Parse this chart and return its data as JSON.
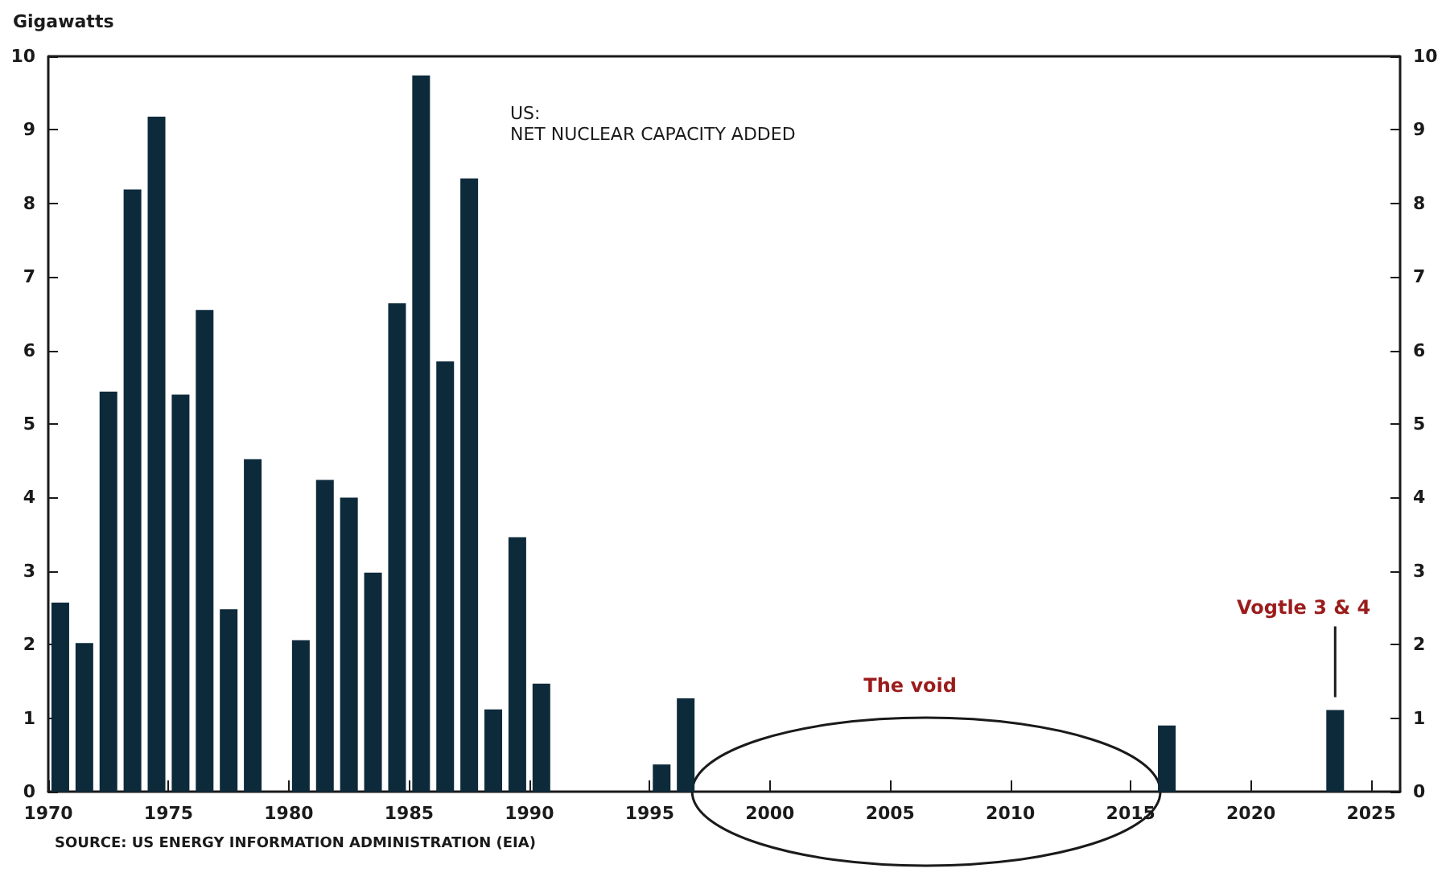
{
  "chart_data": {
    "type": "bar",
    "title": "US:",
    "subtitle": "NET NUCLEAR CAPACITY ADDED",
    "ylabel": "Gigawatts",
    "x": [
      1970.5,
      1971.5,
      1972.5,
      1973.5,
      1974.5,
      1975.5,
      1976.5,
      1977.5,
      1978.5,
      1980.5,
      1981.5,
      1982.5,
      1983.5,
      1984.5,
      1985.5,
      1986.5,
      1987.5,
      1988.5,
      1989.5,
      1990.5,
      1995.5,
      1996.5,
      2016.5,
      2023.5
    ],
    "values": [
      2.57,
      2.02,
      5.44,
      8.19,
      9.18,
      5.4,
      6.55,
      2.48,
      4.52,
      2.06,
      4.24,
      4.0,
      2.98,
      6.64,
      9.74,
      5.85,
      8.34,
      1.12,
      3.46,
      1.47,
      0.37,
      1.27,
      0.9,
      1.11
    ],
    "color": "#0d2a3a",
    "xlim": [
      1970,
      2026.2
    ],
    "xticks": [
      1970,
      1975,
      1980,
      1985,
      1990,
      1995,
      2000,
      2005,
      2010,
      2015,
      2020,
      2025
    ],
    "ylim": [
      0,
      10
    ],
    "yticks": [
      0,
      1,
      2,
      3,
      4,
      5,
      6,
      7,
      8,
      9,
      10
    ],
    "y2lim": [
      0,
      10
    ],
    "y2ticks": [
      0,
      1,
      2,
      3,
      4,
      5,
      6,
      7,
      8,
      9,
      10
    ],
    "grid": false,
    "annotations": [
      "The void",
      {
        "text": "Vogtle 3 & 4",
        "x": 2023.5,
        "y": 1.11
      },
      "SOURCE: US ENERGY INFORMATION ADMINISTRATION (EIA)"
    ]
  }
}
